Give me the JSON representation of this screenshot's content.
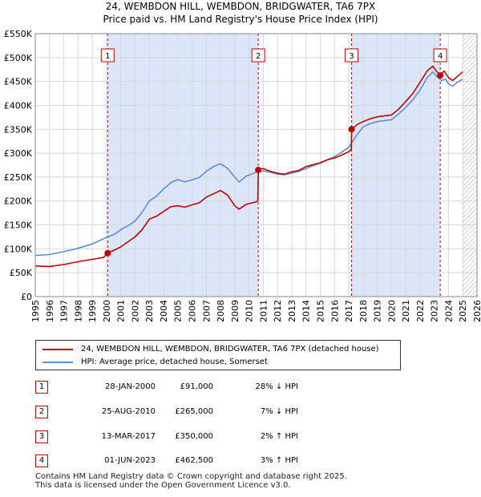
{
  "title": {
    "line1": "24, WEMBDON HILL, WEMBDON, BRIDGWATER, TA6 7PX",
    "line2": "Price paid vs. HM Land Registry's House Price Index (HPI)"
  },
  "colors": {
    "price": "#c00000",
    "hpi": "#5b8fd4",
    "shade": "#dbe6f8",
    "marker_border": "#c00000"
  },
  "chart_data": {
    "type": "line",
    "xlim": [
      1995,
      2026
    ],
    "ylim": [
      0,
      550000
    ],
    "y_ticks": [
      0,
      50000,
      100000,
      150000,
      200000,
      250000,
      300000,
      350000,
      400000,
      450000,
      500000,
      550000
    ],
    "y_tick_labels": [
      "£0",
      "£50K",
      "£100K",
      "£150K",
      "£200K",
      "£250K",
      "£300K",
      "£350K",
      "£400K",
      "£450K",
      "£500K",
      "£550K"
    ],
    "x_ticks": [
      1995,
      1996,
      1997,
      1998,
      1999,
      2000,
      2001,
      2002,
      2003,
      2004,
      2005,
      2006,
      2007,
      2008,
      2009,
      2010,
      2011,
      2012,
      2013,
      2014,
      2015,
      2016,
      2017,
      2018,
      2019,
      2020,
      2021,
      2022,
      2023,
      2024,
      2025,
      2026
    ],
    "x_tick_labels": [
      "1995",
      "1996",
      "1997",
      "1998",
      "1999",
      "2000",
      "2001",
      "2002",
      "2003",
      "2004",
      "2005",
      "2006",
      "2007",
      "2008",
      "2009",
      "2010",
      "2011",
      "2012",
      "2013",
      "2014",
      "2015",
      "2016",
      "2017",
      "2018",
      "2019",
      "2020",
      "2021",
      "2022",
      "2023",
      "2024",
      "2025",
      "2026"
    ],
    "grid": true,
    "shaded_periods": [
      [
        2000.08,
        2010.65
      ],
      [
        2017.2,
        2023.42
      ]
    ],
    "hatch_from": 2025.0,
    "series": [
      {
        "name": "24, WEMBDON HILL, WEMBDON, BRIDGWATER, TA6 7PX (detached house)",
        "points": [
          [
            1995.0,
            64000
          ],
          [
            1996.0,
            63000
          ],
          [
            1997.0,
            67000
          ],
          [
            1998.0,
            73000
          ],
          [
            1999.0,
            78000
          ],
          [
            1999.8,
            82000
          ],
          [
            2000.08,
            91000
          ],
          [
            2000.6,
            98000
          ],
          [
            2001.0,
            104000
          ],
          [
            2002.0,
            125000
          ],
          [
            2002.5,
            140000
          ],
          [
            2003.0,
            162000
          ],
          [
            2003.5,
            168000
          ],
          [
            2004.0,
            178000
          ],
          [
            2004.5,
            188000
          ],
          [
            2005.0,
            190000
          ],
          [
            2005.5,
            187000
          ],
          [
            2006.0,
            192000
          ],
          [
            2006.5,
            196000
          ],
          [
            2007.0,
            208000
          ],
          [
            2007.5,
            215000
          ],
          [
            2008.0,
            222000
          ],
          [
            2008.5,
            212000
          ],
          [
            2009.0,
            190000
          ],
          [
            2009.3,
            183000
          ],
          [
            2009.8,
            193000
          ],
          [
            2010.5,
            198000
          ],
          [
            2010.62,
            200000
          ],
          [
            2010.65,
            265000
          ],
          [
            2011.0,
            268000
          ],
          [
            2011.5,
            262000
          ],
          [
            2012.0,
            258000
          ],
          [
            2012.5,
            256000
          ],
          [
            2013.0,
            261000
          ],
          [
            2013.5,
            264000
          ],
          [
            2014.0,
            272000
          ],
          [
            2014.5,
            276000
          ],
          [
            2015.0,
            280000
          ],
          [
            2015.5,
            286000
          ],
          [
            2016.0,
            290000
          ],
          [
            2016.5,
            296000
          ],
          [
            2017.0,
            303000
          ],
          [
            2017.18,
            308000
          ],
          [
            2017.2,
            350000
          ],
          [
            2017.6,
            360000
          ],
          [
            2018.0,
            366000
          ],
          [
            2018.5,
            372000
          ],
          [
            2019.0,
            376000
          ],
          [
            2019.5,
            378000
          ],
          [
            2020.0,
            380000
          ],
          [
            2020.5,
            392000
          ],
          [
            2021.0,
            408000
          ],
          [
            2021.5,
            425000
          ],
          [
            2022.0,
            448000
          ],
          [
            2022.5,
            472000
          ],
          [
            2022.9,
            482000
          ],
          [
            2023.2,
            470000
          ],
          [
            2023.42,
            462500
          ],
          [
            2023.7,
            472000
          ],
          [
            2024.0,
            458000
          ],
          [
            2024.3,
            452000
          ],
          [
            2024.6,
            460000
          ],
          [
            2025.0,
            470000
          ]
        ]
      },
      {
        "name": "HPI: Average price, detached house, Somerset",
        "points": [
          [
            1995.0,
            86000
          ],
          [
            1996.0,
            88000
          ],
          [
            1997.0,
            94000
          ],
          [
            1998.0,
            101000
          ],
          [
            1999.0,
            110000
          ],
          [
            2000.0,
            124000
          ],
          [
            2000.6,
            131000
          ],
          [
            2001.0,
            140000
          ],
          [
            2001.5,
            148000
          ],
          [
            2002.0,
            158000
          ],
          [
            2002.5,
            176000
          ],
          [
            2003.0,
            200000
          ],
          [
            2003.5,
            210000
          ],
          [
            2004.0,
            225000
          ],
          [
            2004.5,
            238000
          ],
          [
            2005.0,
            245000
          ],
          [
            2005.5,
            240000
          ],
          [
            2006.0,
            244000
          ],
          [
            2006.5,
            249000
          ],
          [
            2007.0,
            262000
          ],
          [
            2007.5,
            272000
          ],
          [
            2008.0,
            278000
          ],
          [
            2008.5,
            268000
          ],
          [
            2009.0,
            250000
          ],
          [
            2009.3,
            240000
          ],
          [
            2009.8,
            252000
          ],
          [
            2010.5,
            260000
          ],
          [
            2011.0,
            263000
          ],
          [
            2011.5,
            260000
          ],
          [
            2012.0,
            256000
          ],
          [
            2012.5,
            255000
          ],
          [
            2013.0,
            258000
          ],
          [
            2013.5,
            262000
          ],
          [
            2014.0,
            268000
          ],
          [
            2014.5,
            274000
          ],
          [
            2015.0,
            279000
          ],
          [
            2015.5,
            286000
          ],
          [
            2016.0,
            293000
          ],
          [
            2016.5,
            302000
          ],
          [
            2017.0,
            312000
          ],
          [
            2017.5,
            335000
          ],
          [
            2018.0,
            355000
          ],
          [
            2018.5,
            362000
          ],
          [
            2019.0,
            366000
          ],
          [
            2019.5,
            368000
          ],
          [
            2020.0,
            370000
          ],
          [
            2020.5,
            382000
          ],
          [
            2021.0,
            396000
          ],
          [
            2021.5,
            412000
          ],
          [
            2022.0,
            432000
          ],
          [
            2022.5,
            458000
          ],
          [
            2022.9,
            470000
          ],
          [
            2023.2,
            460000
          ],
          [
            2023.5,
            452000
          ],
          [
            2023.8,
            455000
          ],
          [
            2024.0,
            445000
          ],
          [
            2024.3,
            440000
          ],
          [
            2024.6,
            448000
          ],
          [
            2025.0,
            455000
          ]
        ]
      }
    ],
    "sales": [
      {
        "label": "1",
        "x": 2000.08,
        "price": 91000
      },
      {
        "label": "2",
        "x": 2010.65,
        "price": 265000
      },
      {
        "label": "3",
        "x": 2017.2,
        "price": 350000
      },
      {
        "label": "4",
        "x": 2023.42,
        "price": 462500
      }
    ]
  },
  "legend": {
    "price_label": "24, WEMBDON HILL, WEMBDON, BRIDGWATER, TA6 7PX (detached house)",
    "hpi_label": "HPI: Average price, detached house, Somerset"
  },
  "transactions": [
    {
      "num": "1",
      "date": "28-JAN-2000",
      "price": "£91,000",
      "hpi": "28% ↓ HPI"
    },
    {
      "num": "2",
      "date": "25-AUG-2010",
      "price": "£265,000",
      "hpi": "7% ↓ HPI"
    },
    {
      "num": "3",
      "date": "13-MAR-2017",
      "price": "£350,000",
      "hpi": "2% ↑ HPI"
    },
    {
      "num": "4",
      "date": "01-JUN-2023",
      "price": "£462,500",
      "hpi": "3% ↑ HPI"
    }
  ],
  "footer": {
    "line1": "Contains HM Land Registry data © Crown copyright and database right 2025.",
    "line2": "This data is licensed under the Open Government Licence v3.0."
  }
}
